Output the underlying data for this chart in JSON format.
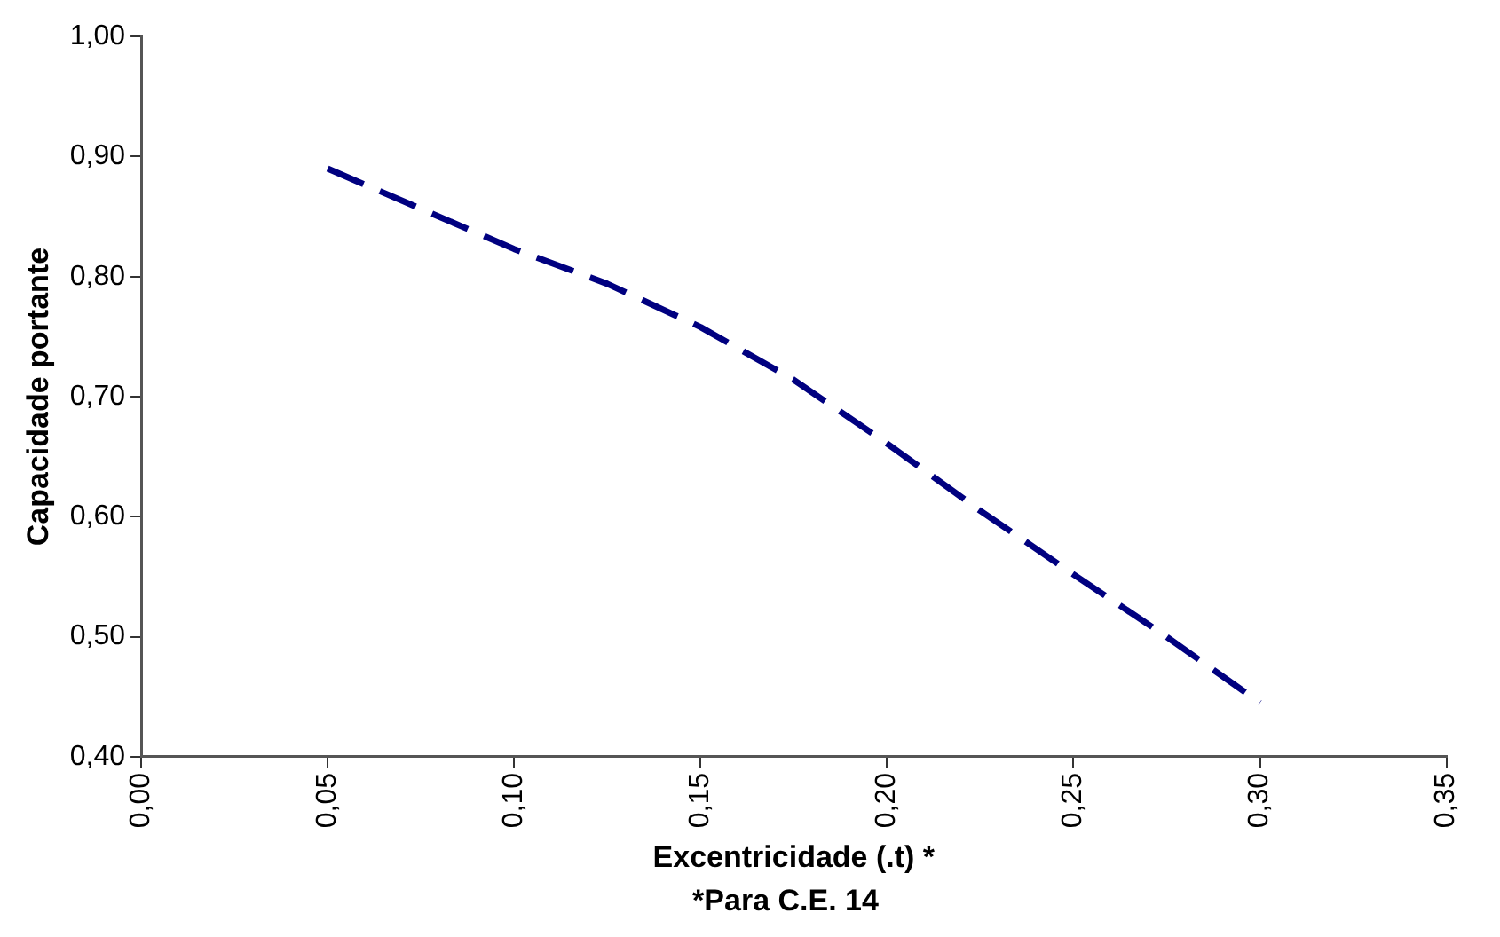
{
  "chart_data": {
    "type": "line",
    "xlabel": "Excentricidade (.t) *",
    "ylabel": "Capacidade portante",
    "annotations": [
      "*Para C.E. 14"
    ],
    "x": [
      0.05,
      0.1,
      0.125,
      0.15,
      0.175,
      0.2,
      0.225,
      0.25,
      0.275,
      0.3
    ],
    "series": [
      {
        "color": "#000080",
        "values": [
          0.89,
          0.823,
          0.794,
          0.758,
          0.714,
          0.661,
          0.605,
          0.552,
          0.5,
          0.445
        ]
      }
    ],
    "xlim": [
      0,
      0.35
    ],
    "xticks": [
      {
        "value": 0,
        "label": "0,00"
      },
      {
        "value": 0.05,
        "label": "0,05"
      },
      {
        "value": 0.1,
        "label": "0,10"
      },
      {
        "value": 0.15,
        "label": "0,15"
      },
      {
        "value": 0.2,
        "label": "0,20"
      },
      {
        "value": 0.25,
        "label": "0,25"
      },
      {
        "value": 0.3,
        "label": "0,30"
      },
      {
        "value": 0.35,
        "label": "0,35"
      }
    ],
    "ylim": [
      0.4,
      1.0
    ],
    "yticks": [
      {
        "value": 0.4,
        "label": "0,40"
      },
      {
        "value": 0.5,
        "label": "0,50"
      },
      {
        "value": 0.6,
        "label": "0,60"
      },
      {
        "value": 0.7,
        "label": "0,70"
      },
      {
        "value": 0.8,
        "label": "0,80"
      },
      {
        "value": 0.9,
        "label": "0,90"
      },
      {
        "value": 1.0,
        "label": "1,00"
      }
    ],
    "grid": false,
    "legend": false,
    "marker": "none",
    "line_style": "dashed"
  }
}
